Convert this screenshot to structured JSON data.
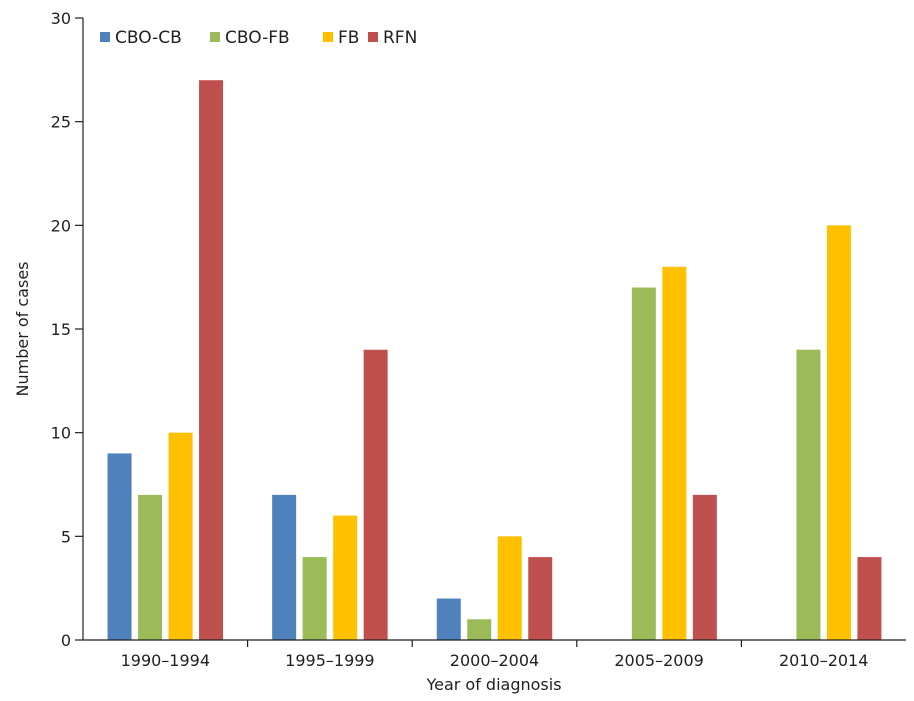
{
  "chart_data": {
    "type": "bar",
    "title": "",
    "xlabel": "Year of diagnosis",
    "ylabel": "Number of cases",
    "categories": [
      "1990–1994",
      "1995–1999",
      "2000–2004",
      "2005–2009",
      "2010–2014"
    ],
    "series": [
      {
        "name": "CBO-CB",
        "color": "#4f81bd",
        "values": [
          9,
          7,
          2,
          0,
          0
        ]
      },
      {
        "name": "CBO-FB",
        "color": "#9bbb59",
        "values": [
          7,
          4,
          1,
          17,
          14
        ]
      },
      {
        "name": "FB",
        "color": "#ffc000",
        "values": [
          10,
          6,
          5,
          18,
          20
        ]
      },
      {
        "name": "RFN",
        "color": "#c0504d",
        "values": [
          27,
          14,
          4,
          7,
          4
        ]
      }
    ],
    "ylim": [
      0,
      30
    ],
    "yticks": [
      0,
      5,
      10,
      15,
      20,
      25,
      30
    ],
    "grid": false,
    "legend": "top-left"
  }
}
